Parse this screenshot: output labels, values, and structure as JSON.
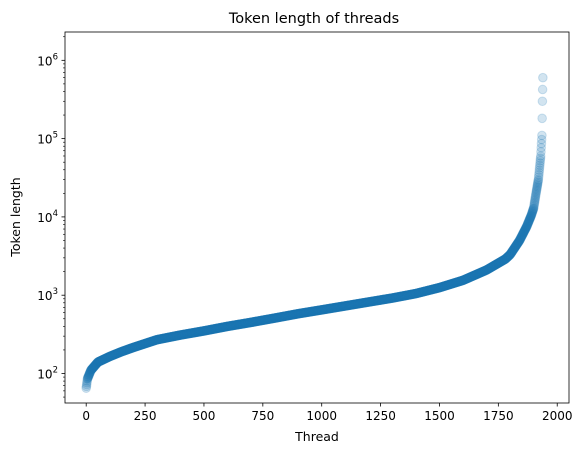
{
  "chart_data": {
    "type": "scatter",
    "title": "Token length of threads",
    "xlabel": "Thread",
    "ylabel": "Token length",
    "yscale": "log",
    "xlim": [
      -90,
      2050
    ],
    "ylim": [
      42,
      2300000
    ],
    "xticks": [
      0,
      250,
      500,
      750,
      1000,
      1250,
      1500,
      1750,
      2000
    ],
    "xtick_labels": [
      "0",
      "250",
      "500",
      "750",
      "1000",
      "1250",
      "1500",
      "1750",
      "2000"
    ],
    "yticks": [
      100,
      1000,
      10000,
      100000,
      1000000
    ],
    "ytick_labels": [
      {
        "base": "10",
        "exp": "2"
      },
      {
        "base": "10",
        "exp": "3"
      },
      {
        "base": "10",
        "exp": "4"
      },
      {
        "base": "10",
        "exp": "5"
      },
      {
        "base": "10",
        "exp": "6"
      }
    ],
    "marker_color": "#1f77b4",
    "marker_alpha": 0.2,
    "n_points": 1940,
    "profile": [
      [
        0,
        65
      ],
      [
        5,
        85
      ],
      [
        20,
        110
      ],
      [
        50,
        140
      ],
      [
        100,
        165
      ],
      [
        150,
        190
      ],
      [
        200,
        215
      ],
      [
        300,
        270
      ],
      [
        400,
        310
      ],
      [
        500,
        350
      ],
      [
        600,
        400
      ],
      [
        700,
        450
      ],
      [
        800,
        510
      ],
      [
        900,
        580
      ],
      [
        1000,
        650
      ],
      [
        1100,
        730
      ],
      [
        1200,
        820
      ],
      [
        1300,
        920
      ],
      [
        1400,
        1050
      ],
      [
        1500,
        1250
      ],
      [
        1600,
        1550
      ],
      [
        1700,
        2100
      ],
      [
        1780,
        2900
      ],
      [
        1800,
        3300
      ],
      [
        1840,
        5000
      ],
      [
        1870,
        7500
      ],
      [
        1890,
        10500
      ],
      [
        1900,
        13000
      ],
      [
        1910,
        20000
      ],
      [
        1920,
        30000
      ],
      [
        1930,
        60000
      ],
      [
        1935,
        110000
      ],
      [
        1937,
        300000
      ],
      [
        1939,
        600000
      ],
      [
        1940,
        1400000
      ]
    ]
  }
}
